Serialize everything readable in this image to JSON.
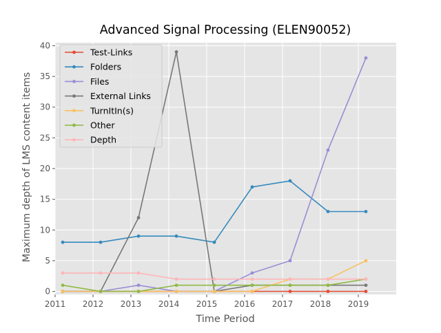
{
  "chart_data": {
    "type": "line",
    "title": "Advanced Signal Processing (ELEN90052)",
    "xlabel": "Time Period",
    "ylabel": "Maximum depth of LMS content items",
    "x": [
      2011.2,
      2012.2,
      2013.2,
      2014.2,
      2015.2,
      2016.2,
      2017.2,
      2018.2,
      2019.2
    ],
    "xlim": [
      2011,
      2020
    ],
    "ylim": [
      -0.5,
      40.5
    ],
    "xticks": [
      2011,
      2012,
      2013,
      2014,
      2015,
      2016,
      2017,
      2018,
      2019
    ],
    "xtick_labels": [
      "2011",
      "2012",
      "2013",
      "2014",
      "2015",
      "2016",
      "2017",
      "2018",
      "2019"
    ],
    "yticks": [
      0,
      5,
      10,
      15,
      20,
      25,
      30,
      35,
      40
    ],
    "ytick_labels": [
      "0",
      "5",
      "10",
      "15",
      "20",
      "25",
      "30",
      "35",
      "40"
    ],
    "grid": true,
    "legend_position": "upper-left",
    "series": [
      {
        "name": "Test-Links",
        "color": "#e24a33",
        "values": [
          0,
          0,
          0,
          0,
          0,
          0,
          0,
          0,
          0
        ]
      },
      {
        "name": "Folders",
        "color": "#348abd",
        "values": [
          8,
          8,
          9,
          9,
          8,
          17,
          18,
          13,
          13
        ]
      },
      {
        "name": "Files",
        "color": "#988ed5",
        "values": [
          0,
          0,
          1,
          0,
          0,
          3,
          5,
          23,
          38
        ]
      },
      {
        "name": "External Links",
        "color": "#777777",
        "values": [
          0,
          0,
          12,
          39,
          0,
          1,
          1,
          1,
          1
        ]
      },
      {
        "name": "TurnItIn(s)",
        "color": "#fbc15e",
        "values": [
          0,
          0,
          0,
          0,
          0,
          0,
          2,
          2,
          5
        ]
      },
      {
        "name": "Other",
        "color": "#8eba42",
        "values": [
          1,
          0,
          0,
          1,
          1,
          1,
          1,
          1,
          2
        ]
      },
      {
        "name": "Depth",
        "color": "#ffb5b8",
        "values": [
          3,
          3,
          3,
          2,
          2,
          2,
          2,
          2,
          2
        ]
      }
    ]
  }
}
